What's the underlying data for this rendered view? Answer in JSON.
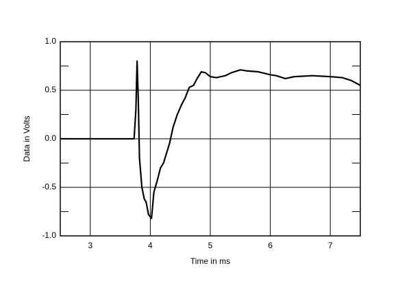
{
  "chart_data": {
    "type": "line",
    "x_label": "Time in ms",
    "y_label": "Data in Volts",
    "xlim": [
      2.5,
      7.5
    ],
    "ylim": [
      -1,
      1
    ],
    "xticks": [
      3,
      4,
      5,
      6,
      7
    ],
    "yticks": [
      {
        "value": -1,
        "label": "-1.0"
      },
      -0.5,
      {
        "value": 0,
        "label": "0.0"
      },
      0.5,
      {
        "value": 1,
        "label": "1.0"
      }
    ],
    "yminor": [
      -0.75,
      -0.25,
      0.25,
      0.75
    ],
    "grid": true,
    "series": [
      {
        "color": "#000000",
        "x": [
          2.5,
          3.73,
          3.76,
          3.78,
          3.8,
          3.82,
          3.86,
          3.9,
          3.93,
          3.97,
          4.02,
          4.06,
          4.12,
          4.17,
          4.22,
          4.27,
          4.32,
          4.38,
          4.45,
          4.52,
          4.58,
          4.65,
          4.72,
          4.78,
          4.85,
          4.92,
          5.0,
          5.1,
          5.25,
          5.35,
          5.5,
          5.6,
          5.8,
          6.0,
          6.1,
          6.25,
          6.4,
          6.7,
          7.0,
          7.2,
          7.35,
          7.5
        ],
        "values": [
          0,
          0,
          0.3,
          0.8,
          0.4,
          -0.2,
          -0.5,
          -0.62,
          -0.65,
          -0.78,
          -0.82,
          -0.55,
          -0.42,
          -0.3,
          -0.25,
          -0.15,
          -0.05,
          0.12,
          0.25,
          0.35,
          0.42,
          0.53,
          0.55,
          0.62,
          0.69,
          0.68,
          0.64,
          0.63,
          0.65,
          0.68,
          0.71,
          0.7,
          0.69,
          0.66,
          0.65,
          0.62,
          0.64,
          0.65,
          0.64,
          0.63,
          0.6,
          0.55
        ]
      }
    ]
  }
}
